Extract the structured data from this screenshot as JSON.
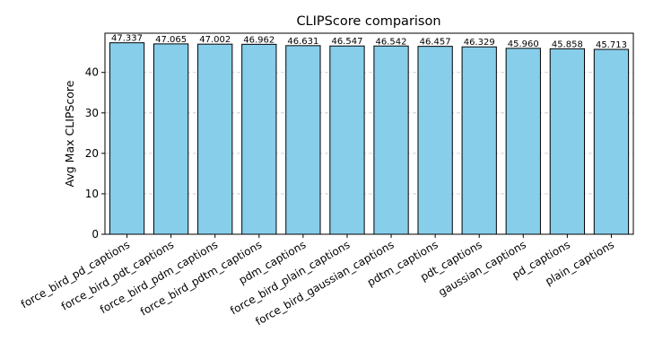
{
  "chart_data": {
    "type": "bar",
    "title": "CLIPScore comparison",
    "xlabel": "",
    "ylabel": "Avg Max CLIPScore",
    "categories": [
      "force_bird_pd_captions",
      "force_bird_pdt_captions",
      "force_bird_pdm_captions",
      "force_bird_pdtm_captions",
      "pdm_captions",
      "force_bird_plain_captions",
      "force_bird_gaussian_captions",
      "pdtm_captions",
      "pdt_captions",
      "gaussian_captions",
      "pd_captions",
      "plain_captions"
    ],
    "values": [
      47.337,
      47.065,
      47.002,
      46.962,
      46.631,
      46.547,
      46.542,
      46.457,
      46.329,
      45.96,
      45.858,
      45.713
    ],
    "value_labels": [
      "47.337",
      "47.065",
      "47.002",
      "46.962",
      "46.631",
      "46.547",
      "46.542",
      "46.457",
      "46.329",
      "45.960",
      "45.858",
      "45.713"
    ],
    "ylim": [
      0,
      49.704
    ],
    "yticks": [
      0,
      10,
      20,
      30,
      40
    ],
    "grid": {
      "y": true,
      "style": "dashed"
    },
    "bar_color": "#87ceeb",
    "edge_color": "#000000"
  }
}
